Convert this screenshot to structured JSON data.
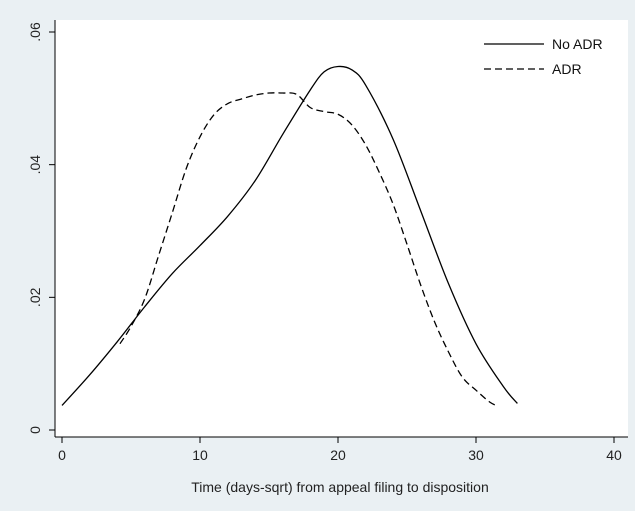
{
  "chart_data": {
    "type": "line",
    "title": "",
    "xlabel": "Time (days-sqrt) from appeal filing to disposition",
    "ylabel": "",
    "xlim": [
      0,
      40
    ],
    "ylim": [
      0,
      0.06
    ],
    "x_ticks": [
      0,
      10,
      20,
      30,
      40
    ],
    "x_tick_labels": [
      "0",
      "10",
      "20",
      "30",
      "40"
    ],
    "y_ticks": [
      0,
      0.02,
      0.04,
      0.06
    ],
    "y_tick_labels": [
      "0",
      ".02",
      ".04",
      ".06"
    ],
    "grid": false,
    "legend_position": "top-right",
    "background": "#eaf0f3",
    "plot_background": "#ffffff",
    "series": [
      {
        "name": "No ADR",
        "style": "solid",
        "color": "#000000",
        "x": [
          0,
          2,
          4,
          6,
          8,
          10,
          12,
          14,
          16,
          18,
          19,
          20,
          21,
          22,
          24,
          26,
          28,
          30,
          32,
          33
        ],
        "y": [
          0.0037,
          0.0083,
          0.0133,
          0.0186,
          0.0236,
          0.0278,
          0.0322,
          0.0376,
          0.0446,
          0.0513,
          0.054,
          0.0548,
          0.0543,
          0.052,
          0.0438,
          0.033,
          0.0221,
          0.013,
          0.0065,
          0.004
        ]
      },
      {
        "name": "ADR",
        "style": "dashed",
        "color": "#000000",
        "x": [
          4.2,
          5,
          6,
          7,
          8,
          9,
          10,
          11,
          12,
          13,
          14,
          15,
          16,
          17,
          18,
          19,
          20,
          21,
          22,
          23,
          24,
          25,
          26,
          27,
          28,
          29,
          30,
          31,
          31.6
        ],
        "y": [
          0.013,
          0.0156,
          0.0198,
          0.0263,
          0.0328,
          0.0394,
          0.0442,
          0.0475,
          0.0492,
          0.0499,
          0.0505,
          0.0508,
          0.0508,
          0.0506,
          0.0486,
          0.048,
          0.0476,
          0.046,
          0.043,
          0.0388,
          0.034,
          0.028,
          0.0218,
          0.0163,
          0.0118,
          0.008,
          0.006,
          0.0042,
          0.0036
        ]
      }
    ]
  }
}
